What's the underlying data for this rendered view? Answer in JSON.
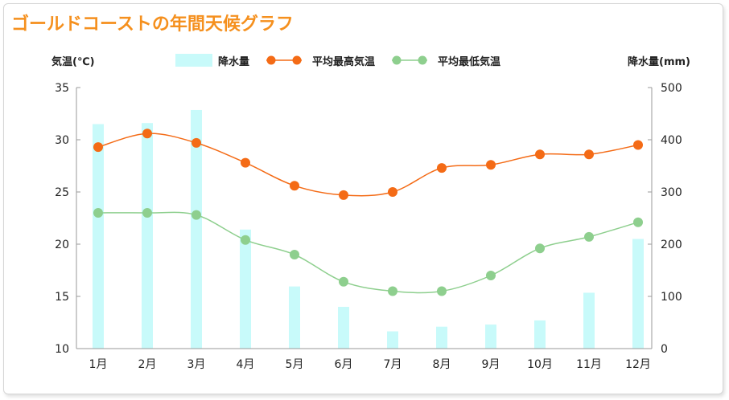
{
  "chart_data": {
    "type": "bar+line",
    "title": "ゴールドコーストの年間天候グラフ",
    "categories": [
      "1月",
      "2月",
      "3月",
      "4月",
      "5月",
      "6月",
      "7月",
      "8月",
      "9月",
      "10月",
      "11月",
      "12月"
    ],
    "y_left": {
      "label": "気温(℃)",
      "range": [
        10,
        35
      ],
      "ticks": [
        10,
        15,
        20,
        25,
        30,
        35
      ]
    },
    "y_right": {
      "label": "降水量(mm)",
      "range": [
        0,
        500
      ],
      "ticks": [
        0,
        100,
        200,
        300,
        400,
        500
      ]
    },
    "series": [
      {
        "name": "降水量",
        "kind": "bar",
        "axis": "right",
        "color": "#c8fafa",
        "values": [
          430,
          432,
          457,
          228,
          119,
          80,
          33,
          42,
          46,
          54,
          107,
          210
        ]
      },
      {
        "name": "平均最高気温",
        "kind": "line",
        "axis": "left",
        "color": "#f46b16",
        "values": [
          29.3,
          30.6,
          29.7,
          27.8,
          25.6,
          24.7,
          25.0,
          27.3,
          27.6,
          28.6,
          28.6,
          29.5
        ]
      },
      {
        "name": "平均最低気温",
        "kind": "line",
        "axis": "left",
        "color": "#8ecf8e",
        "values": [
          23.0,
          23.0,
          22.8,
          20.4,
          19.0,
          16.4,
          15.5,
          15.5,
          17.0,
          19.6,
          20.7,
          22.1
        ]
      }
    ],
    "legend_position": "top",
    "grid": false
  }
}
